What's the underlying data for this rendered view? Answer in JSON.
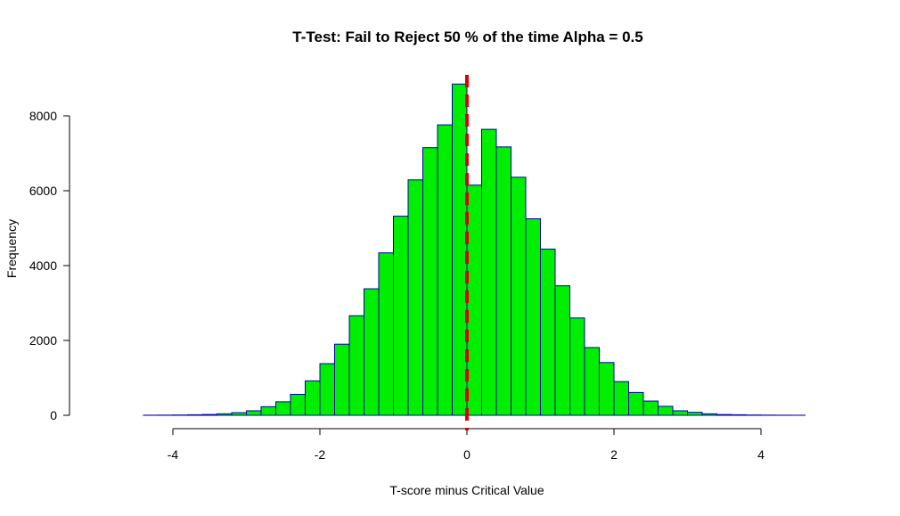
{
  "chart_data": {
    "type": "bar",
    "title": "T-Test: Fail to Reject 50 % of the time Alpha =  0.5",
    "xlabel": "T-score minus Critical Value",
    "ylabel": "Frequency",
    "xlim": [
      -4.6,
      4.6
    ],
    "ylim": [
      0,
      8900
    ],
    "x_ticks": [
      -4,
      -2,
      0,
      2,
      4
    ],
    "x_tick_labels": [
      "-4",
      "-2",
      "0",
      "2",
      "4"
    ],
    "y_ticks": [
      0,
      2000,
      4000,
      6000,
      8000
    ],
    "y_tick_labels": [
      "0",
      "2000",
      "4000",
      "6000",
      "8000"
    ],
    "bin_width": 0.2,
    "bins_start": [
      -4.4,
      -4.2,
      -4.0,
      -3.8,
      -3.6,
      -3.4,
      -3.2,
      -3.0,
      -2.8,
      -2.6,
      -2.4,
      -2.2,
      -2.0,
      -1.8,
      -1.6,
      -1.4,
      -1.2,
      -1.0,
      -0.8,
      -0.6,
      -0.4,
      -0.2,
      0.0,
      0.2,
      0.4,
      0.6,
      0.8,
      1.0,
      1.2,
      1.4,
      1.6,
      1.8,
      2.0,
      2.2,
      2.4,
      2.6,
      2.8,
      3.0,
      3.2,
      3.4,
      3.6,
      3.8,
      4.0,
      4.2,
      4.4
    ],
    "counts": [
      3,
      5,
      8,
      14,
      22,
      40,
      70,
      120,
      230,
      360,
      560,
      920,
      1380,
      1900,
      2660,
      3380,
      4340,
      5320,
      6290,
      7150,
      7760,
      8850,
      6150,
      7640,
      7170,
      6360,
      5250,
      4440,
      3460,
      2600,
      1810,
      1410,
      900,
      610,
      380,
      240,
      120,
      80,
      40,
      20,
      14,
      8,
      5,
      3,
      2
    ],
    "bar_fill": "#00ee00",
    "bar_stroke": "#0000aa",
    "reference_line": {
      "x": 0,
      "color": "#dd0000",
      "style": "dashed"
    },
    "grid": false,
    "legend": "none"
  }
}
